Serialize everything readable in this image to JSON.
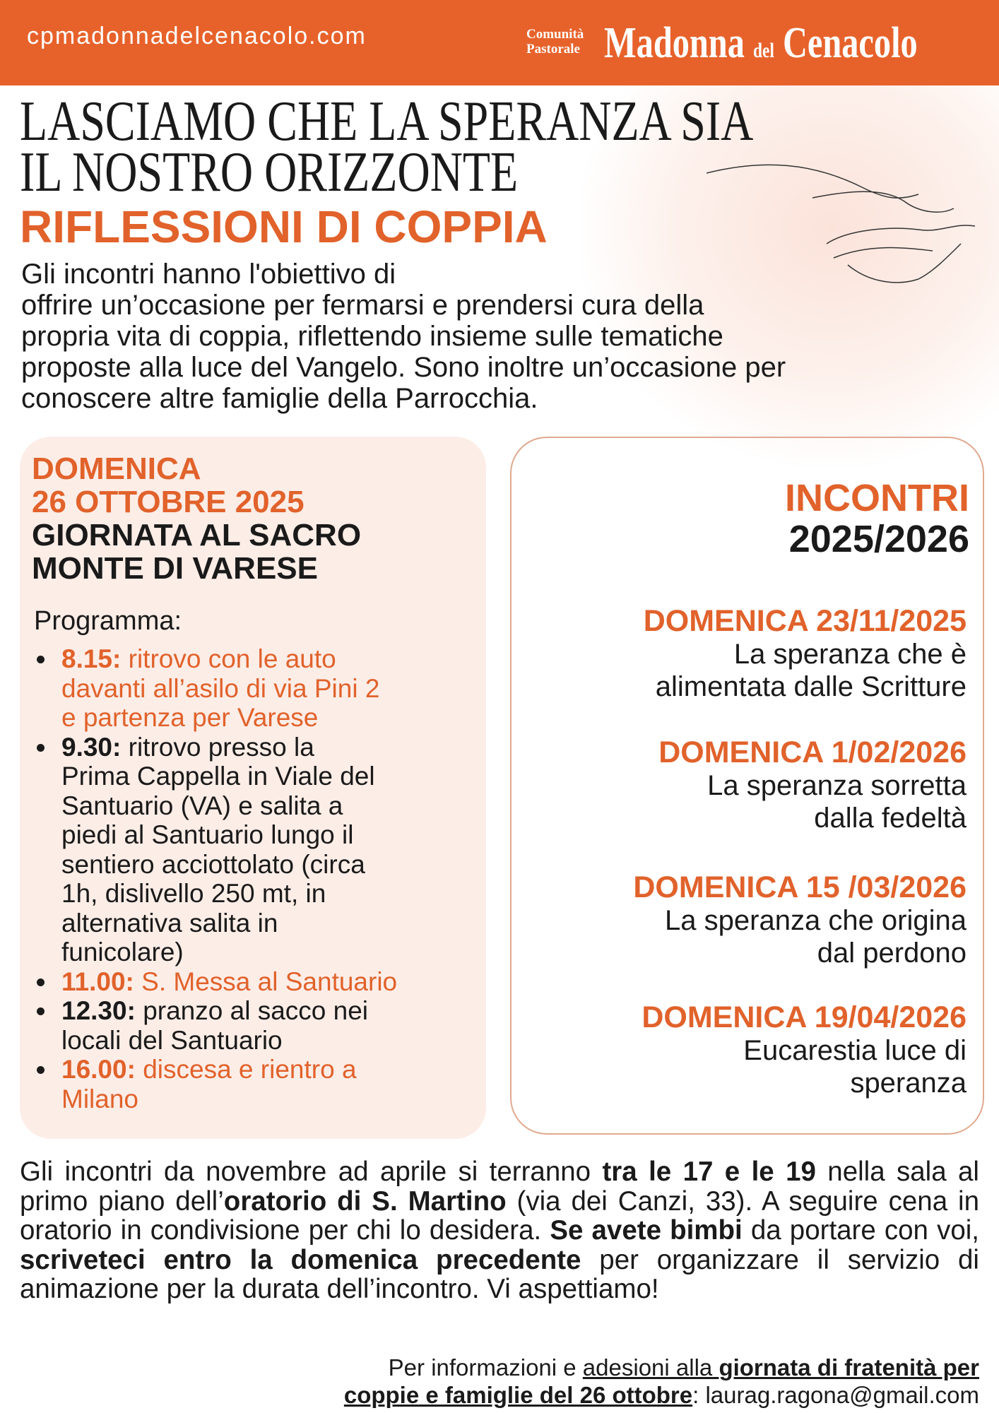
{
  "header": {
    "website": "cpmadonnadelcenacolo.com",
    "logo": {
      "small_lines": [
        "Comunità",
        "Pastorale"
      ],
      "name_parts": [
        "Madonna",
        "del",
        "Cenacolo"
      ]
    }
  },
  "title": {
    "lines": [
      "LASCIAMO CHE LA SPERANZA SIA",
      "IL NOSTRO ORIZZONTE"
    ],
    "subtitle": "RIFLESSIONI DI COPPIA"
  },
  "intro": {
    "lines": [
      "Gli incontri hanno l'obiettivo di",
      "offrire un’occasione per fermarsi e prendersi cura della",
      "propria vita di coppia, riflettendo insieme sulle tematiche",
      "proposte alla luce del Vangelo. Sono inoltre un’occasione per",
      "conoscere altre famiglie della Parrocchia."
    ]
  },
  "event_day": {
    "date_lines": [
      "DOMENICA",
      "26 OTTOBRE 2025"
    ],
    "title_lines": [
      "GIORNATA AL SACRO",
      "MONTE DI VARESE"
    ],
    "program_label": "Programma:",
    "program": [
      {
        "time": "8.15:",
        "lines": [
          "ritrovo con le auto",
          "davanti all’asilo di via Pini 2",
          "e partenza per Varese"
        ],
        "highlight": true
      },
      {
        "time": "9.30:",
        "lines": [
          "ritrovo presso la",
          "Prima Cappella in Viale del",
          "Santuario (VA) e salita a",
          "piedi al Santuario lungo il",
          "sentiero acciottolato (circa",
          "1h, dislivello 250 mt, in",
          "alternativa salita in",
          "funicolare)"
        ],
        "highlight": false
      },
      {
        "time": "11.00:",
        "lines": [
          "S. Messa al Santuario"
        ],
        "highlight": true
      },
      {
        "time": "12.30:",
        "lines": [
          "pranzo al sacco nei",
          "locali del Santuario"
        ],
        "highlight": false
      },
      {
        "time": "16.00:",
        "lines": [
          "discesa e rientro a",
          "Milano"
        ],
        "highlight": true
      }
    ]
  },
  "meetings": {
    "heading": "INCONTRI",
    "season": "2025/2026",
    "items": [
      {
        "date": "DOMENICA 23/11/2025",
        "lines": [
          "La speranza che è",
          "alimentata dalle Scritture"
        ]
      },
      {
        "date": "DOMENICA 1/02/2026",
        "lines": [
          "La speranza sorretta",
          "dalla fedeltà"
        ]
      },
      {
        "date": "DOMENICA 15 /03/2026",
        "lines": [
          "La speranza che origina",
          "dal perdono"
        ]
      },
      {
        "date": "DOMENICA 19/04/2026",
        "lines": [
          "Eucarestia luce di",
          "speranza"
        ]
      }
    ]
  },
  "notes": {
    "segments": [
      {
        "text": "Gli incontri da novembre ad aprile si terranno ",
        "bold": false
      },
      {
        "text": "tra le 17 e le 19",
        "bold": true
      },
      {
        "text": " nella sala al primo piano dell’",
        "bold": false
      },
      {
        "text": "oratorio di S. Martino",
        "bold": true
      },
      {
        "text": " (via dei Canzi, 33). A seguire cena in oratorio in condivisione per chi lo desidera. ",
        "bold": false
      },
      {
        "text": "Se avete bimbi",
        "bold": true
      },
      {
        "text": " da portare con voi, ",
        "bold": false
      },
      {
        "text": "scriveteci entro la domenica precedente",
        "bold": true
      },
      {
        "text": " per organizzare il servizio di animazione per la durata dell’incontro. Vi aspettiamo!",
        "bold": false
      }
    ]
  },
  "contact": {
    "lines": [
      [
        {
          "text": "Per informazioni e ",
          "bold": false,
          "underline": false
        },
        {
          "text": "adesioni alla ",
          "bold": false,
          "underline": true
        },
        {
          "text": "giornata di fratenità per",
          "bold": true,
          "underline": true
        }
      ],
      [
        {
          "text": "coppie e famiglie del 26 ottobre",
          "bold": true,
          "underline": true
        },
        {
          "text": ": laurag.ragona@gmail.com",
          "bold": false,
          "underline": false
        }
      ]
    ]
  }
}
